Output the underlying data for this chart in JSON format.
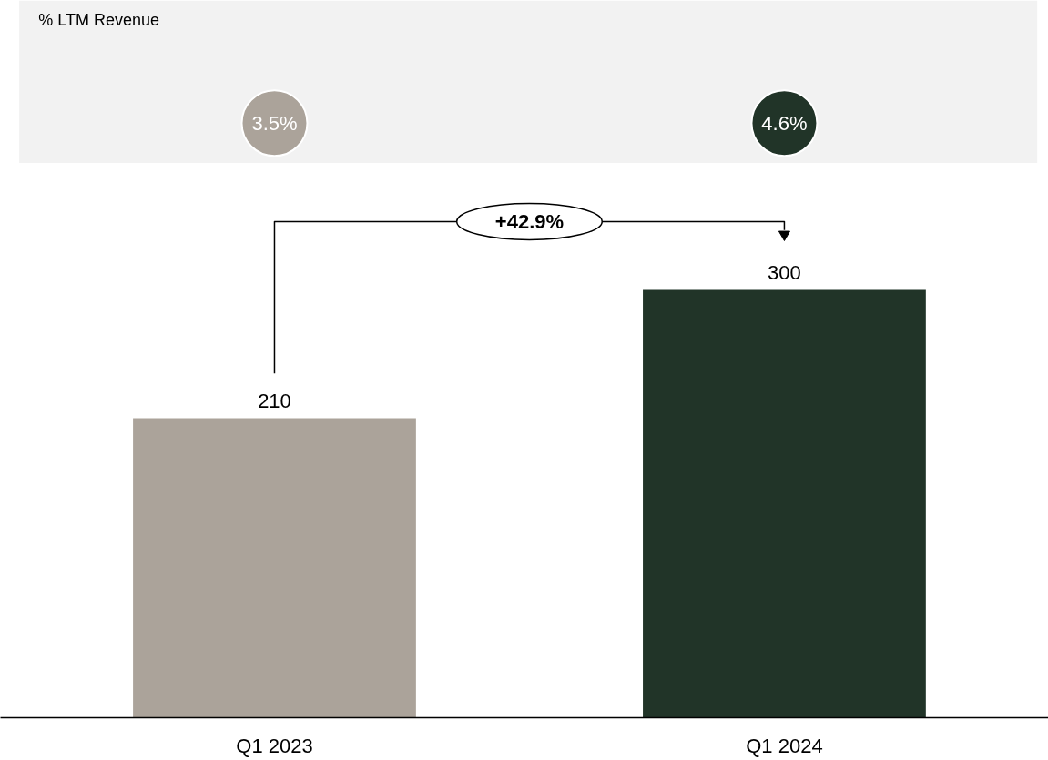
{
  "chart_data": {
    "type": "bar",
    "categories": [
      "Q1 2023",
      "Q1 2024"
    ],
    "values": [
      210,
      300
    ],
    "colors": [
      "#aba39a",
      "#213428"
    ],
    "data_labels": true,
    "grid": false,
    "annotations": [
      "% LTM Revenue",
      "3.5%",
      "4.6%",
      "+42.9%"
    ]
  }
}
